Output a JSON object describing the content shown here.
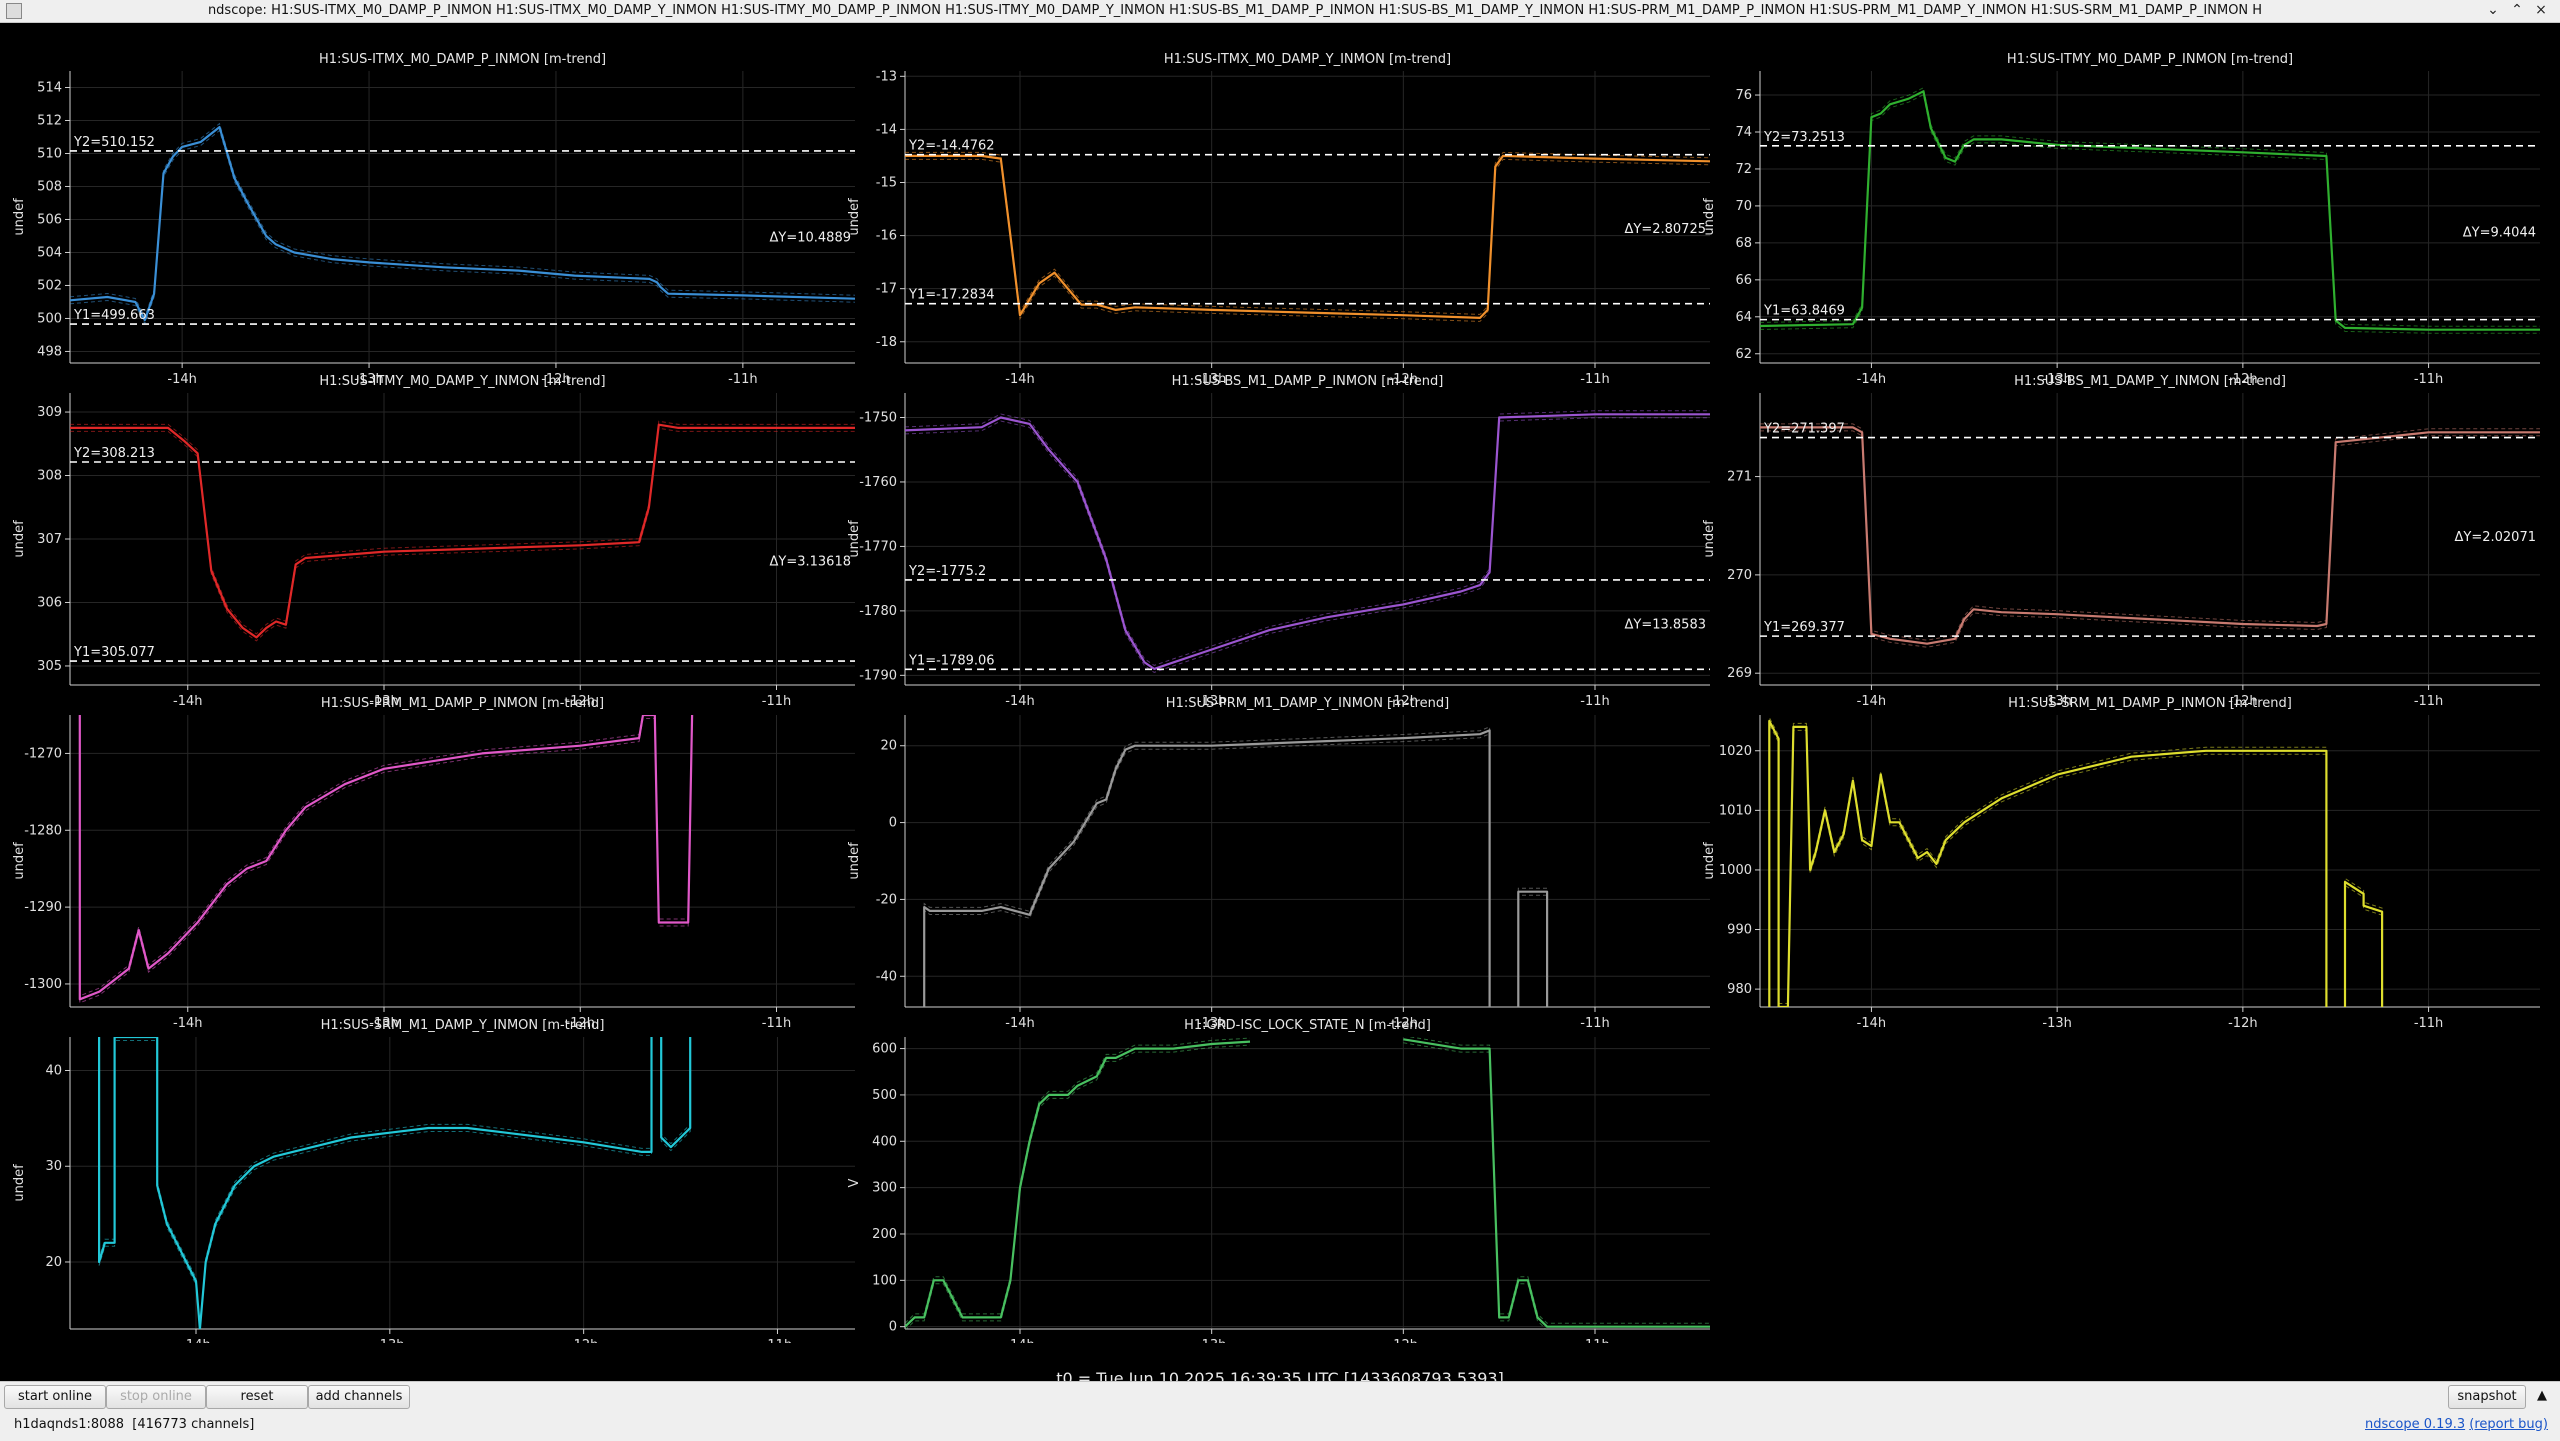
{
  "window": {
    "title": "ndscope: H1:SUS-ITMX_M0_DAMP_P_INMON H1:SUS-ITMX_M0_DAMP_Y_INMON H1:SUS-ITMY_M0_DAMP_P_INMON H1:SUS-ITMY_M0_DAMP_Y_INMON H1:SUS-BS_M1_DAMP_P_INMON H1:SUS-BS_M1_DAMP_Y_INMON H1:SUS-PRM_M1_DAMP_P_INMON H1:SUS-PRM_M1_DAMP_Y_INMON H1:SUS-SRM_M1_DAMP_P_INMON H",
    "controls": [
      "⌄",
      "⌃",
      "×"
    ]
  },
  "t0_label": "t0 = Tue Jun 10 2025 16:39:35 UTC [1433608793.5393]",
  "toolbar": {
    "start_online": "start online",
    "stop_online": "stop online",
    "reset": "reset",
    "add_channels": "add channels",
    "snapshot": "snapshot",
    "expand_icon": "up-arrow-icon"
  },
  "status": {
    "server": "h1daqnds1:8088",
    "channels": "[416773 channels]"
  },
  "version": {
    "prefix": "ndscope ",
    "version": "0.19.3",
    "report": "(report bug)"
  },
  "theme": {
    "background": "#000000",
    "axis": "#d0d0d0",
    "grid": "#262626",
    "cursor": "#ffffff"
  },
  "chart_data": [
    {
      "type": "line",
      "title": "H1:SUS-ITMX_M0_DAMP_P_INMON [m-trend]",
      "ylabel": "undef",
      "color": "#3a8fd6",
      "ylim": [
        497.3,
        515
      ],
      "yticks": [
        498,
        500,
        502,
        504,
        506,
        508,
        510,
        512,
        514
      ],
      "xlim": [
        -14.6,
        -10.4
      ],
      "xticks": [
        -14,
        -13,
        -12,
        -11
      ],
      "xtick_labels": [
        "-14h",
        "-13h",
        "-12h",
        "-11h"
      ],
      "series": [
        {
          "x": [
            -14.6,
            -14.4,
            -14.25,
            -14.2,
            -14.15,
            -14.1,
            -14.05,
            -14.0,
            -13.9,
            -13.8,
            -13.72,
            -13.65,
            -13.6,
            -13.55,
            -13.5,
            -13.4,
            -13.2,
            -13.0,
            -12.6,
            -12.2,
            -11.9,
            -11.5,
            -11.46,
            -11.44,
            -11.4,
            -11.0,
            -10.4
          ],
          "y": [
            501.1,
            501.3,
            501.0,
            499.9,
            501.5,
            508.8,
            509.8,
            510.4,
            510.7,
            511.6,
            508.5,
            507.0,
            506.0,
            505.0,
            504.5,
            504.0,
            503.6,
            503.4,
            503.1,
            502.9,
            502.6,
            502.4,
            502.2,
            501.9,
            501.5,
            501.4,
            501.2
          ]
        }
      ],
      "cursors": {
        "y1": 499.663,
        "y2": 510.152,
        "y1_label": "Y1=499.663",
        "y2_label": "Y2=510.152",
        "dy_label": "ΔY=10.4889"
      }
    },
    {
      "type": "line",
      "title": "H1:SUS-ITMX_M0_DAMP_Y_INMON [m-trend]",
      "ylabel": "undef",
      "color": "#f0902c",
      "ylim": [
        -18.4,
        -12.9
      ],
      "yticks": [
        -18,
        -17,
        -16,
        -15,
        -14,
        -13
      ],
      "xlim": [
        -14.6,
        -10.4
      ],
      "xticks": [
        -14,
        -13,
        -12,
        -11
      ],
      "xtick_labels": [
        "-14h",
        "-13h",
        "-12h",
        "-11h"
      ],
      "series": [
        {
          "x": [
            -14.6,
            -14.2,
            -14.1,
            -14.05,
            -14.0,
            -13.95,
            -13.9,
            -13.82,
            -13.75,
            -13.68,
            -13.6,
            -13.5,
            -13.4,
            -13.0,
            -12.5,
            -12.0,
            -11.6,
            -11.56,
            -11.52,
            -11.48,
            -11.0,
            -10.4
          ],
          "y": [
            -14.5,
            -14.5,
            -14.55,
            -16.0,
            -17.5,
            -17.2,
            -16.9,
            -16.7,
            -17.0,
            -17.3,
            -17.3,
            -17.4,
            -17.35,
            -17.4,
            -17.45,
            -17.5,
            -17.55,
            -17.4,
            -14.7,
            -14.5,
            -14.55,
            -14.6
          ]
        }
      ],
      "cursors": {
        "y1": -17.2834,
        "y2": -14.4762,
        "y1_label": "Y1=-17.2834",
        "y2_label": "Y2=-14.4762",
        "dy_label": "ΔY=2.80725"
      }
    },
    {
      "type": "line",
      "title": "H1:SUS-ITMY_M0_DAMP_P_INMON [m-trend]",
      "ylabel": "undef",
      "color": "#2fb02f",
      "ylim": [
        61.5,
        77.3
      ],
      "yticks": [
        62,
        64,
        66,
        68,
        70,
        72,
        74,
        76
      ],
      "xlim": [
        -14.6,
        -10.4
      ],
      "xticks": [
        -14,
        -13,
        -12,
        -11
      ],
      "xtick_labels": [
        "-14h",
        "-13h",
        "-12h",
        "-11h"
      ],
      "series": [
        {
          "x": [
            -14.6,
            -14.1,
            -14.05,
            -14.0,
            -13.95,
            -13.9,
            -13.8,
            -13.72,
            -13.68,
            -13.6,
            -13.55,
            -13.5,
            -13.45,
            -13.3,
            -13.0,
            -12.5,
            -12.0,
            -11.55,
            -11.5,
            -11.45,
            -11.0,
            -10.4
          ],
          "y": [
            63.5,
            63.6,
            64.5,
            74.8,
            75.0,
            75.5,
            75.8,
            76.2,
            74.2,
            72.6,
            72.4,
            73.3,
            73.6,
            73.6,
            73.3,
            73.1,
            72.9,
            72.7,
            63.8,
            63.4,
            63.3,
            63.3
          ]
        }
      ],
      "cursors": {
        "y1": 63.8469,
        "y2": 73.2513,
        "y1_label": "Y1=63.8469",
        "y2_label": "Y2=73.2513",
        "dy_label": "ΔY=9.4044"
      }
    },
    {
      "type": "line",
      "title": "H1:SUS-ITMY_M0_DAMP_Y_INMON [m-trend]",
      "ylabel": "undef",
      "color": "#e02828",
      "ylim": [
        304.7,
        309.3
      ],
      "yticks": [
        305,
        306,
        307,
        308,
        309
      ],
      "xlim": [
        -14.6,
        -10.6
      ],
      "xticks": [
        -14,
        -13,
        -12,
        -11
      ],
      "xtick_labels": [
        "-14h",
        "-13h",
        "-12h",
        "-11h"
      ],
      "series": [
        {
          "x": [
            -14.6,
            -14.1,
            -14.02,
            -13.95,
            -13.88,
            -13.8,
            -13.72,
            -13.65,
            -13.6,
            -13.55,
            -13.5,
            -13.45,
            -13.4,
            -13.0,
            -12.5,
            -12.0,
            -11.7,
            -11.65,
            -11.6,
            -11.5,
            -10.6
          ],
          "y": [
            308.75,
            308.75,
            308.55,
            308.35,
            306.5,
            305.9,
            305.6,
            305.45,
            305.6,
            305.7,
            305.65,
            306.6,
            306.7,
            306.8,
            306.85,
            306.9,
            306.95,
            307.5,
            308.8,
            308.75,
            308.75
          ]
        }
      ],
      "cursors": {
        "y1": 305.077,
        "y2": 308.213,
        "y1_label": "Y1=305.077",
        "y2_label": "Y2=308.213",
        "dy_label": "ΔY=3.13618"
      }
    },
    {
      "type": "line",
      "title": "H1:SUS-BS_M1_DAMP_P_INMON [m-trend]",
      "ylabel": "undef",
      "color": "#9b55d0",
      "ylim": [
        -1791.5,
        -1746.2
      ],
      "yticks": [
        -1790,
        -1780,
        -1770,
        -1760,
        -1750
      ],
      "xlim": [
        -14.6,
        -10.4
      ],
      "xticks": [
        -14,
        -13,
        -12,
        -11
      ],
      "xtick_labels": [
        "-14h",
        "-13h",
        "-12h",
        "-11h"
      ],
      "series": [
        {
          "x": [
            -14.6,
            -14.2,
            -14.1,
            -13.95,
            -13.85,
            -13.7,
            -13.55,
            -13.45,
            -13.35,
            -13.3,
            -13.2,
            -13.0,
            -12.7,
            -12.4,
            -12.0,
            -11.7,
            -11.6,
            -11.55,
            -11.5,
            -11.0,
            -10.4
          ],
          "y": [
            -1752,
            -1751.5,
            -1750,
            -1751,
            -1755,
            -1760,
            -1772,
            -1783,
            -1788,
            -1789,
            -1788,
            -1786,
            -1783,
            -1781,
            -1779,
            -1777,
            -1776,
            -1774,
            -1750,
            -1749.5,
            -1749.5
          ]
        }
      ],
      "cursors": {
        "y1": -1789.06,
        "y2": -1775.2,
        "y1_label": "Y1=-1789.06",
        "y2_label": "Y2=-1775.2",
        "dy_label": "ΔY=13.8583"
      }
    },
    {
      "type": "line",
      "title": "H1:SUS-BS_M1_DAMP_Y_INMON [m-trend]",
      "ylabel": "undef",
      "color": "#c87a70",
      "ylim": [
        268.88,
        271.85
      ],
      "yticks": [
        269,
        270,
        271
      ],
      "xlim": [
        -14.6,
        -10.4
      ],
      "xticks": [
        -14,
        -13,
        -12,
        -11
      ],
      "xtick_labels": [
        "-14h",
        "-13h",
        "-12h",
        "-11h"
      ],
      "series": [
        {
          "x": [
            -14.6,
            -14.1,
            -14.05,
            -14.0,
            -13.9,
            -13.7,
            -13.55,
            -13.5,
            -13.45,
            -13.3,
            -13.0,
            -12.5,
            -12.0,
            -11.6,
            -11.55,
            -11.5,
            -11.0,
            -10.4
          ],
          "y": [
            271.5,
            271.5,
            271.45,
            269.4,
            269.35,
            269.3,
            269.35,
            269.55,
            269.65,
            269.62,
            269.6,
            269.55,
            269.5,
            269.48,
            269.5,
            271.35,
            271.45,
            271.45
          ]
        }
      ],
      "cursors": {
        "y1": 269.377,
        "y2": 271.397,
        "y1_label": "Y1=269.377",
        "y2_label": "Y2=271.397",
        "dy_label": "ΔY=2.02071"
      }
    },
    {
      "type": "line",
      "title": "H1:SUS-PRM_M1_DAMP_P_INMON [m-trend]",
      "ylabel": "undef",
      "color": "#e058c8",
      "ylim": [
        -1303,
        -1265
      ],
      "yticks": [
        -1300,
        -1290,
        -1280,
        -1270
      ],
      "xlim": [
        -14.6,
        -10.6
      ],
      "xticks": [
        -14,
        -13,
        -12,
        -11
      ],
      "xtick_labels": [
        "-14h",
        "-13h",
        "-12h",
        "-11h"
      ],
      "series": [
        {
          "x": [
            -14.55,
            -14.55,
            -14.45,
            -14.3,
            -14.25,
            -14.2,
            -14.1,
            -13.95,
            -13.8,
            -13.7,
            -13.6,
            -13.5,
            -13.4,
            -13.2,
            -13.0,
            -12.5,
            -12.0,
            -11.7,
            -11.68,
            -11.62,
            -11.6,
            -11.45,
            -11.43
          ],
          "y": [
            -1265,
            -1302,
            -1301,
            -1298,
            -1293,
            -1298,
            -1296,
            -1292,
            -1287,
            -1285,
            -1284,
            -1280,
            -1277,
            -1274,
            -1272,
            -1270,
            -1269,
            -1268,
            -1265,
            -1265,
            -1292,
            -1292,
            -1265
          ]
        }
      ]
    },
    {
      "type": "line",
      "title": "H1:SUS-PRM_M1_DAMP_Y_INMON [m-trend]",
      "ylabel": "undef",
      "color": "#9a9a9a",
      "ylim": [
        -48,
        28
      ],
      "yticks": [
        -40,
        -20,
        0,
        20
      ],
      "xlim": [
        -14.6,
        -10.4
      ],
      "xticks": [
        -14,
        -13,
        -12,
        -11
      ],
      "xtick_labels": [
        "-14h",
        "-13h",
        "-12h",
        "-11h"
      ],
      "series": [
        {
          "x": [
            -14.5,
            -14.5,
            -14.47,
            -14.2,
            -14.1,
            -13.95,
            -13.85,
            -13.72,
            -13.6,
            -13.55,
            -13.5,
            -13.45,
            -13.4,
            -13.0,
            -12.5,
            -12.0,
            -11.6,
            -11.55,
            -11.55
          ],
          "y": [
            -48,
            -22,
            -23,
            -23,
            -22,
            -24,
            -12,
            -5,
            5,
            6,
            14,
            19,
            20,
            20,
            21,
            22,
            23,
            24,
            -48
          ]
        },
        {
          "x": [
            -11.4,
            -11.4,
            -11.3,
            -11.25,
            -11.25
          ],
          "y": [
            -48,
            -18,
            -18,
            -18,
            -48
          ]
        }
      ]
    },
    {
      "type": "line",
      "title": "H1:SUS-SRM_M1_DAMP_P_INMON [m-trend]",
      "ylabel": "undef",
      "color": "#dede2e",
      "ylim": [
        977,
        1026
      ],
      "yticks": [
        980,
        990,
        1000,
        1010,
        1020
      ],
      "xlim": [
        -14.6,
        -10.4
      ],
      "xticks": [
        -14,
        -13,
        -12,
        -11
      ],
      "xtick_labels": [
        "-14h",
        "-13h",
        "-12h",
        "-11h"
      ],
      "series": [
        {
          "x": [
            -14.55,
            -14.55,
            -14.5,
            -14.5,
            -14.45,
            -14.42,
            -14.35,
            -14.33,
            -14.3,
            -14.25,
            -14.2,
            -14.15,
            -14.1,
            -14.05,
            -14.0,
            -13.95,
            -13.9,
            -13.85,
            -13.75,
            -13.7,
            -13.65,
            -13.6,
            -13.5,
            -13.3,
            -13.0,
            -12.6,
            -12.2,
            -11.8,
            -11.6,
            -11.55,
            -11.55
          ],
          "y": [
            977,
            1025,
            1022,
            977,
            977,
            1024,
            1024,
            1000,
            1003,
            1010,
            1003,
            1006,
            1015,
            1005,
            1004,
            1016,
            1008,
            1008,
            1002,
            1003,
            1001,
            1005,
            1008,
            1012,
            1016,
            1019,
            1020,
            1020,
            1020,
            1020,
            977
          ]
        },
        {
          "x": [
            -11.45,
            -11.45,
            -11.35,
            -11.35,
            -11.25,
            -11.25
          ],
          "y": [
            977,
            998,
            996,
            994,
            993,
            977
          ]
        }
      ]
    },
    {
      "type": "line",
      "title": "H1:SUS-SRM_M1_DAMP_Y_INMON [m-trend]",
      "ylabel": "undef",
      "color": "#22c8d8",
      "ylim": [
        13,
        43.5
      ],
      "yticks": [
        20,
        30,
        40
      ],
      "xlim": [
        -14.65,
        -10.6
      ],
      "xticks": [
        -14,
        -13,
        -12,
        -11
      ],
      "xtick_labels": [
        "-14h",
        "-13h",
        "-12h",
        "-11h"
      ],
      "series": [
        {
          "x": [
            -14.5,
            -14.5,
            -14.47,
            -14.42,
            -14.42,
            -14.2,
            -14.2,
            -14.15,
            -14.1,
            -14.05,
            -14.0,
            -13.98,
            -13.95,
            -13.9,
            -13.85,
            -13.8,
            -13.75,
            -13.7,
            -13.6,
            -13.4,
            -13.2,
            -13.0,
            -12.8,
            -12.6,
            -12.4,
            -12.2,
            -12.0,
            -11.7,
            -11.65,
            -11.65
          ],
          "y": [
            43.5,
            20,
            22,
            22,
            43.5,
            43.5,
            28,
            24,
            22,
            20,
            18,
            13,
            20,
            24,
            26,
            28,
            29,
            30,
            31,
            32,
            33,
            33.5,
            34,
            34,
            33.5,
            33,
            32.5,
            31.5,
            31.5,
            43.5
          ]
        },
        {
          "x": [
            -11.6,
            -11.6,
            -11.55,
            -11.5,
            -11.45,
            -11.45
          ],
          "y": [
            43.5,
            33,
            32,
            33,
            34,
            43.5
          ]
        }
      ]
    },
    {
      "type": "line",
      "title": "H1:GRD-ISC_LOCK_STATE_N [m-trend]",
      "ylabel": "V",
      "color": "#48c060",
      "ylim": [
        -5,
        625
      ],
      "yticks": [
        0,
        100,
        200,
        300,
        400,
        500,
        600
      ],
      "xlim": [
        -14.6,
        -10.4
      ],
      "xticks": [
        -14,
        -13,
        -12,
        -11
      ],
      "xtick_labels": [
        "-14h",
        "-13h",
        "-12h",
        "-11h"
      ],
      "series": [
        {
          "x": [
            -14.6,
            -14.55,
            -14.5,
            -14.45,
            -14.4,
            -14.3,
            -14.25,
            -14.2,
            -14.1,
            -14.05,
            -14.0,
            -13.95,
            -13.9,
            -13.85,
            -13.8,
            -13.75,
            -13.7,
            -13.6,
            -13.55,
            -13.5,
            -13.4,
            -13.2,
            -13.0,
            -12.8
          ],
          "y": [
            0,
            20,
            20,
            100,
            100,
            20,
            20,
            20,
            20,
            100,
            300,
            400,
            480,
            500,
            500,
            500,
            520,
            540,
            580,
            580,
            600,
            600,
            610,
            615
          ]
        },
        {
          "x": [
            -12.0,
            -11.7,
            -11.55,
            -11.5,
            -11.45,
            -11.4,
            -11.35,
            -11.3,
            -11.25,
            -11.2,
            -10.4
          ],
          "y": [
            620,
            600,
            600,
            20,
            20,
            100,
            100,
            20,
            0,
            0,
            0
          ]
        }
      ]
    }
  ]
}
